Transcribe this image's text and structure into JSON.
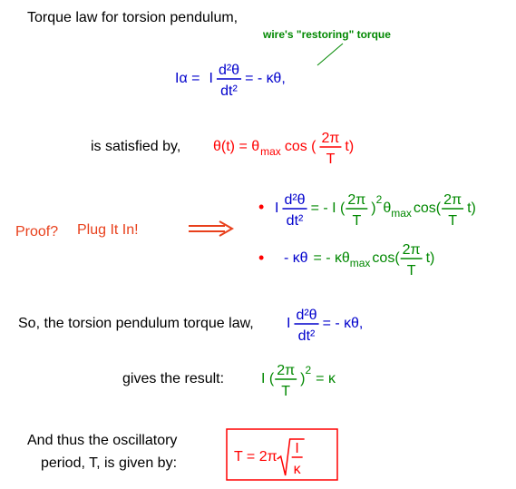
{
  "intro": "Torque law for torsion pendulum,",
  "annotation": "wire's \"restoring\" torque",
  "eq1": {
    "lhs": "Iα =",
    "I": "I",
    "num": "d²θ",
    "den": "dt²",
    "rhs": "= - κθ,"
  },
  "satisfied": {
    "label": "is satisfied by,",
    "lhs": "θ(t) = θ",
    "sub": "max",
    "cos": "cos (",
    "num": "2π",
    "den": "T",
    "tail": "t)"
  },
  "proof": "Proof?",
  "plug": "Plug It In!",
  "bullet1": {
    "I": "I",
    "num": "d²θ",
    "den": "dt²",
    "eq": "= - I (",
    "num2": "2π",
    "den2": "T",
    "close": ")",
    "exp": "2",
    "theta": "θ",
    "sub": "max",
    "cos": "cos(",
    "num3": "2π",
    "den3": "T",
    "tail": "t)"
  },
  "bullet2": {
    "lhs": "- κθ",
    "eq": "= - κθ",
    "sub": "max",
    "cos": "cos(",
    "num": "2π",
    "den": "T",
    "tail": "t)"
  },
  "so": {
    "label": "So, the torsion pendulum torque law,",
    "I": "I",
    "num": "d²θ",
    "den": "dt²",
    "rhs": "= - κθ,"
  },
  "result": {
    "label": "gives the result:",
    "open": "I (",
    "num": "2π",
    "den": "T",
    "close": ")",
    "exp": "2",
    "rhs": "= κ"
  },
  "period": {
    "line1": "And thus the oscillatory",
    "line2": "period, T, is given by:",
    "lhs": "T = 2π",
    "num": "I",
    "den": "κ"
  }
}
